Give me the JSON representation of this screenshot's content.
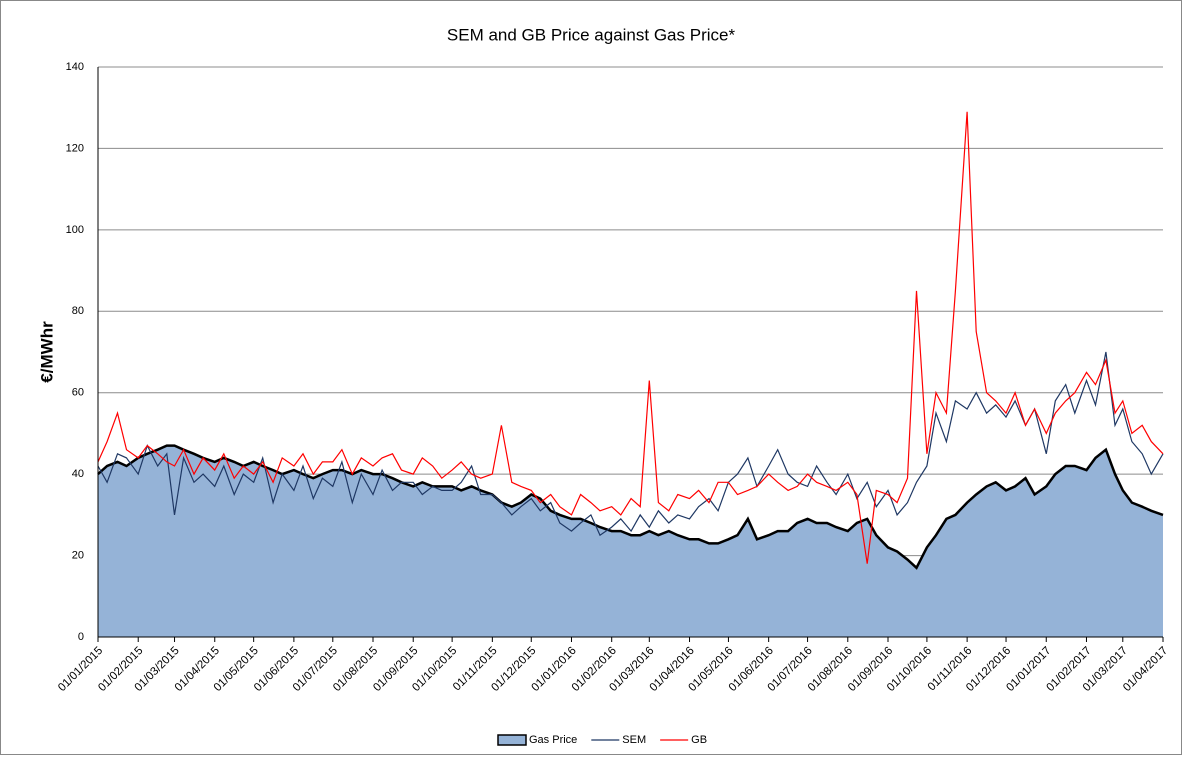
{
  "chart_data": {
    "type": "line",
    "title": "SEM and GB Price against Gas Price*",
    "y_label": "€/MWhr",
    "xlim": [
      "2015-01-01",
      "2017-04-01"
    ],
    "xticks": [
      {
        "value": "2015-01-01",
        "label": "01/01/2015"
      },
      {
        "value": "2015-02-01",
        "label": "01/02/2015"
      },
      {
        "value": "2015-03-01",
        "label": "01/03/2015"
      },
      {
        "value": "2015-04-01",
        "label": "01/04/2015"
      },
      {
        "value": "2015-05-01",
        "label": "01/05/2015"
      },
      {
        "value": "2015-06-01",
        "label": "01/06/2015"
      },
      {
        "value": "2015-07-01",
        "label": "01/07/2015"
      },
      {
        "value": "2015-08-01",
        "label": "01/08/2015"
      },
      {
        "value": "2015-09-01",
        "label": "01/09/2015"
      },
      {
        "value": "2015-10-01",
        "label": "01/10/2015"
      },
      {
        "value": "2015-11-01",
        "label": "01/11/2015"
      },
      {
        "value": "2015-12-01",
        "label": "01/12/2015"
      },
      {
        "value": "2016-01-01",
        "label": "01/01/2016"
      },
      {
        "value": "2016-02-01",
        "label": "01/02/2016"
      },
      {
        "value": "2016-03-01",
        "label": "01/03/2016"
      },
      {
        "value": "2016-04-01",
        "label": "01/04/2016"
      },
      {
        "value": "2016-05-01",
        "label": "01/05/2016"
      },
      {
        "value": "2016-06-01",
        "label": "01/06/2016"
      },
      {
        "value": "2016-07-01",
        "label": "01/07/2016"
      },
      {
        "value": "2016-08-01",
        "label": "01/08/2016"
      },
      {
        "value": "2016-09-01",
        "label": "01/09/2016"
      },
      {
        "value": "2016-10-01",
        "label": "01/10/2016"
      },
      {
        "value": "2016-11-01",
        "label": "01/11/2016"
      },
      {
        "value": "2016-12-01",
        "label": "01/12/2016"
      },
      {
        "value": "2017-01-01",
        "label": "01/01/2017"
      },
      {
        "value": "2017-02-01",
        "label": "01/02/2017"
      },
      {
        "value": "2017-03-01",
        "label": "01/03/2017"
      },
      {
        "value": "2017-04-01",
        "label": "01/04/2017"
      }
    ],
    "ylim": [
      0,
      140
    ],
    "yticks": [
      0,
      20,
      40,
      60,
      80,
      100,
      120,
      140
    ],
    "grid": true,
    "legend": "bottom",
    "x": [
      "2015-01-01",
      "2015-01-08",
      "2015-01-16",
      "2015-01-23",
      "2015-02-01",
      "2015-02-08",
      "2015-02-16",
      "2015-02-23",
      "2015-03-01",
      "2015-03-08",
      "2015-03-16",
      "2015-03-23",
      "2015-04-01",
      "2015-04-08",
      "2015-04-16",
      "2015-04-23",
      "2015-05-01",
      "2015-05-08",
      "2015-05-16",
      "2015-05-23",
      "2015-06-01",
      "2015-06-08",
      "2015-06-16",
      "2015-06-23",
      "2015-07-01",
      "2015-07-08",
      "2015-07-16",
      "2015-07-23",
      "2015-08-01",
      "2015-08-08",
      "2015-08-16",
      "2015-08-23",
      "2015-09-01",
      "2015-09-08",
      "2015-09-16",
      "2015-09-23",
      "2015-10-01",
      "2015-10-08",
      "2015-10-16",
      "2015-10-23",
      "2015-11-01",
      "2015-11-08",
      "2015-11-16",
      "2015-11-23",
      "2015-12-01",
      "2015-12-08",
      "2015-12-16",
      "2015-12-23",
      "2016-01-01",
      "2016-01-08",
      "2016-01-16",
      "2016-01-23",
      "2016-02-01",
      "2016-02-08",
      "2016-02-16",
      "2016-02-23",
      "2016-03-01",
      "2016-03-08",
      "2016-03-16",
      "2016-03-23",
      "2016-04-01",
      "2016-04-08",
      "2016-04-16",
      "2016-04-23",
      "2016-05-01",
      "2016-05-08",
      "2016-05-16",
      "2016-05-23",
      "2016-06-01",
      "2016-06-08",
      "2016-06-16",
      "2016-06-23",
      "2016-07-01",
      "2016-07-08",
      "2016-07-16",
      "2016-07-23",
      "2016-08-01",
      "2016-08-08",
      "2016-08-16",
      "2016-08-23",
      "2016-09-01",
      "2016-09-08",
      "2016-09-16",
      "2016-09-23",
      "2016-10-01",
      "2016-10-08",
      "2016-10-16",
      "2016-10-23",
      "2016-11-01",
      "2016-11-08",
      "2016-11-16",
      "2016-11-23",
      "2016-12-01",
      "2016-12-08",
      "2016-12-16",
      "2016-12-23",
      "2017-01-01",
      "2017-01-08",
      "2017-01-16",
      "2017-01-23",
      "2017-02-01",
      "2017-02-08",
      "2017-02-16",
      "2017-02-23",
      "2017-03-01",
      "2017-03-08",
      "2017-03-16",
      "2017-03-23",
      "2017-04-01"
    ],
    "series": [
      {
        "name": "Gas Price",
        "color": "#000000",
        "fill": "#95b3d7",
        "values": [
          40,
          42,
          43,
          42,
          44,
          45,
          46,
          47,
          47,
          46,
          45,
          44,
          43,
          44,
          43,
          42,
          43,
          42,
          41,
          40,
          41,
          40,
          39,
          40,
          41,
          41,
          40,
          41,
          40,
          40,
          39,
          38,
          37,
          38,
          37,
          37,
          37,
          36,
          37,
          36,
          35,
          33,
          32,
          33,
          35,
          34,
          31,
          30,
          29,
          29,
          28,
          27,
          26,
          26,
          25,
          25,
          26,
          25,
          26,
          25,
          24,
          24,
          23,
          23,
          24,
          25,
          29,
          24,
          25,
          26,
          26,
          28,
          29,
          28,
          28,
          27,
          26,
          28,
          29,
          25,
          22,
          21,
          19,
          17,
          22,
          25,
          29,
          30,
          33,
          35,
          37,
          38,
          36,
          37,
          39,
          35,
          37,
          40,
          42,
          42,
          41,
          44,
          46,
          40,
          36,
          33,
          32,
          31,
          30
        ]
      },
      {
        "name": "SEM",
        "color": "#1f3864",
        "values": [
          42,
          38,
          45,
          44,
          40,
          47,
          42,
          45,
          30,
          44,
          38,
          40,
          37,
          42,
          35,
          40,
          38,
          44,
          33,
          40,
          36,
          42,
          34,
          39,
          37,
          43,
          33,
          40,
          35,
          41,
          36,
          38,
          38,
          35,
          37,
          36,
          36,
          38,
          42,
          35,
          35,
          33,
          30,
          32,
          34,
          31,
          33,
          28,
          26,
          28,
          30,
          25,
          27,
          29,
          26,
          30,
          27,
          31,
          28,
          30,
          29,
          32,
          34,
          31,
          38,
          40,
          44,
          37,
          42,
          46,
          40,
          38,
          37,
          42,
          38,
          35,
          40,
          34,
          38,
          32,
          36,
          30,
          33,
          38,
          42,
          55,
          48,
          58,
          56,
          60,
          55,
          57,
          54,
          58,
          52,
          56,
          45,
          58,
          62,
          55,
          63,
          57,
          70,
          52,
          56,
          48,
          45,
          40,
          45
        ]
      },
      {
        "name": "GB",
        "color": "#ff0000",
        "values": [
          43,
          48,
          55,
          46,
          44,
          47,
          45,
          43,
          42,
          46,
          40,
          44,
          41,
          45,
          39,
          42,
          40,
          43,
          38,
          44,
          42,
          45,
          40,
          43,
          43,
          46,
          40,
          44,
          42,
          44,
          45,
          41,
          40,
          44,
          42,
          39,
          41,
          43,
          40,
          39,
          40,
          52,
          38,
          37,
          36,
          33,
          35,
          32,
          30,
          35,
          33,
          31,
          32,
          30,
          34,
          32,
          63,
          33,
          31,
          35,
          34,
          36,
          33,
          38,
          38,
          35,
          36,
          37,
          40,
          38,
          36,
          37,
          40,
          38,
          37,
          36,
          38,
          35,
          18,
          36,
          35,
          33,
          39,
          85,
          45,
          60,
          55,
          85,
          129,
          75,
          60,
          58,
          55,
          60,
          52,
          56,
          50,
          55,
          58,
          60,
          65,
          62,
          68,
          55,
          58,
          50,
          52,
          48,
          45
        ]
      }
    ]
  }
}
